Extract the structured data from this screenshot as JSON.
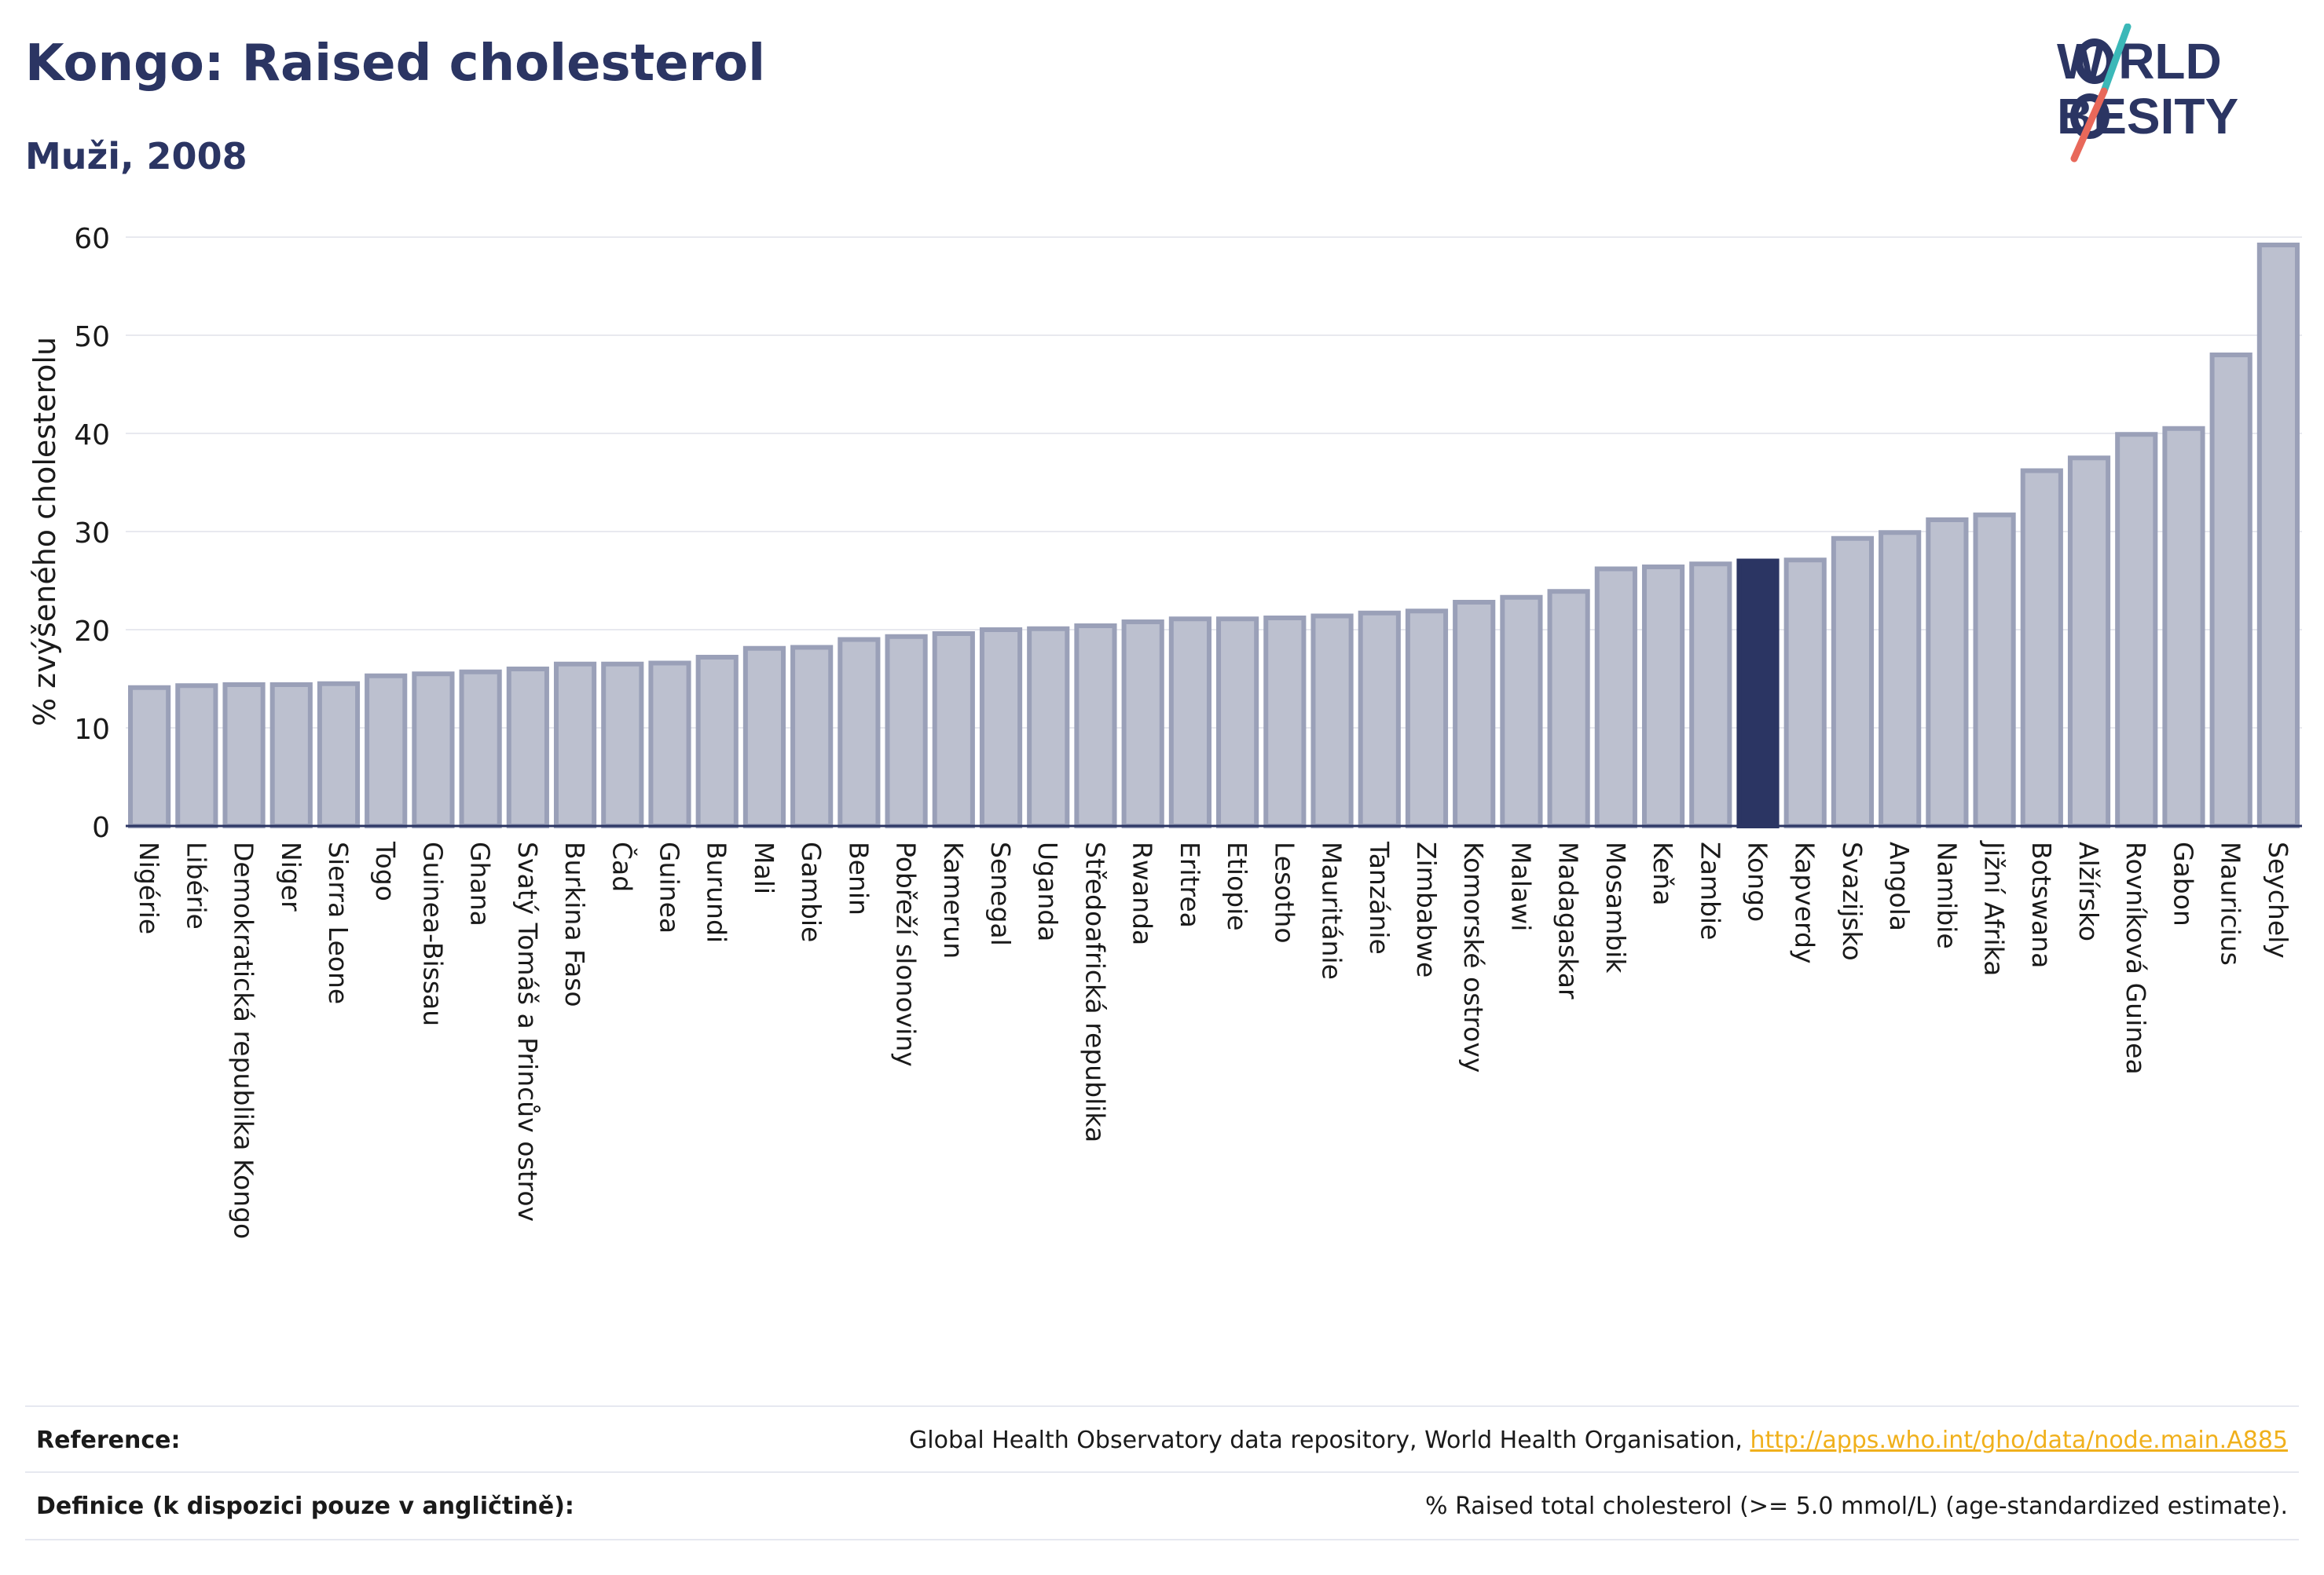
{
  "header": {
    "title": "Kongo: Raised cholesterol",
    "subtitle": "Muži, 2008"
  },
  "logo": {
    "line1": "W  RLD",
    "line2": "BESITY",
    "text": "WORLD OBESITY",
    "colors": {
      "text": "#2b3563",
      "slash_top": "#3bb8b8",
      "slash_bottom": "#e8685a"
    }
  },
  "colors": {
    "bar_fill": "#bcc0cf",
    "bar_stroke": "#9aa0b8",
    "highlight": "#2b3563",
    "axis": "#2b3563",
    "grid": "#e8e9ef"
  },
  "chart_data": {
    "type": "bar",
    "ylabel": "% zvýšeného cholesterolu",
    "xlabel": "",
    "ylim": [
      0,
      60
    ],
    "yticks": [
      0,
      10,
      20,
      30,
      40,
      50,
      60
    ],
    "grid": true,
    "highlight": "Kongo",
    "categories": [
      "Nigérie",
      "Libérie",
      "Demokratická republika Kongo",
      "Niger",
      "Sierra Leone",
      "Togo",
      "Guinea-Bissau",
      "Ghana",
      "Svatý Tomáš a Princův ostrov",
      "Burkina Faso",
      "Čad",
      "Guinea",
      "Burundi",
      "Mali",
      "Gambie",
      "Benin",
      "Pobřeží slonoviny",
      "Kamerun",
      "Senegal",
      "Uganda",
      "Středoafrická republika",
      "Rwanda",
      "Eritrea",
      "Etiopie",
      "Lesotho",
      "Mauritánie",
      "Tanzánie",
      "Zimbabwe",
      "Komorské ostrovy",
      "Malawi",
      "Madagaskar",
      "Mosambik",
      "Keňa",
      "Zambie",
      "Kongo",
      "Kapverdy",
      "Svazijsko",
      "Angola",
      "Namibie",
      "Jižní Afrika",
      "Botswana",
      "Alžírsko",
      "Rovníková Guinea",
      "Gabon",
      "Mauricius",
      "Seychely"
    ],
    "values": [
      14.1,
      14.3,
      14.4,
      14.4,
      14.5,
      15.3,
      15.5,
      15.7,
      16.0,
      16.5,
      16.5,
      16.6,
      17.2,
      18.1,
      18.2,
      19.0,
      19.3,
      19.6,
      20.0,
      20.1,
      20.4,
      20.8,
      21.1,
      21.1,
      21.2,
      21.4,
      21.7,
      21.9,
      22.8,
      23.3,
      23.9,
      26.2,
      26.4,
      26.7,
      27.0,
      27.1,
      29.3,
      29.9,
      31.2,
      31.7,
      36.2,
      37.5,
      39.9,
      40.5,
      48.0,
      59.2
    ]
  },
  "footer": {
    "reference_label": "Reference:",
    "reference_text": "Global Health Observatory data repository, World Health Organisation, ",
    "reference_link": "http://apps.who.int/gho/data/node.main.A885",
    "definition_label": "Definice (k dispozici pouze v angličtině):",
    "definition_text": "% Raised total cholesterol (>= 5.0 mmol/L) (age-standardized estimate)."
  }
}
